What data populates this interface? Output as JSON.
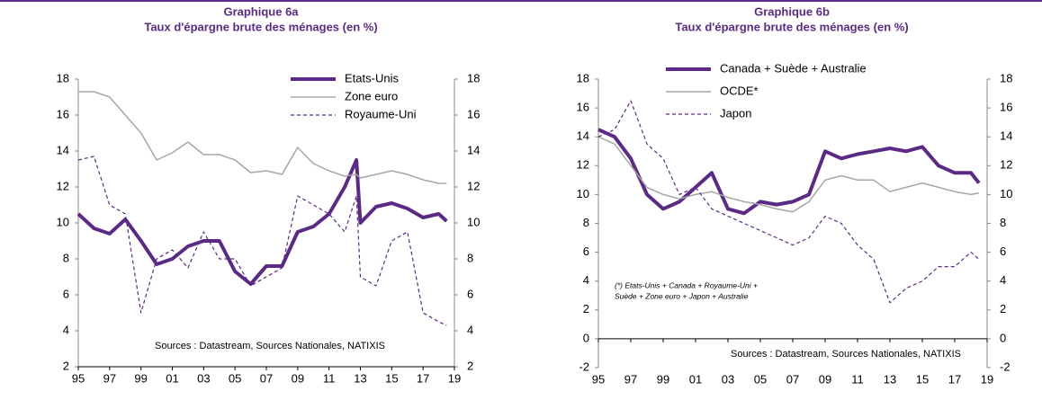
{
  "chart_data": [
    {
      "type": "line",
      "title": [
        "Graphique 6a",
        "Taux d'épargne brute des ménages (en %)"
      ],
      "x": [
        1995,
        1996,
        1997,
        1998,
        1999,
        2000,
        2001,
        2002,
        2003,
        2004,
        2005,
        2006,
        2007,
        2008,
        2009,
        2010,
        2011,
        2012,
        2012.75,
        2013,
        2014,
        2015,
        2016,
        2017,
        2018,
        2018.5
      ],
      "xlim": [
        1995,
        2019
      ],
      "xticks": [
        {
          "value": 1995,
          "label": "95"
        },
        {
          "value": 1997,
          "label": "97"
        },
        {
          "value": 1999,
          "label": "99"
        },
        {
          "value": 2001,
          "label": "01"
        },
        {
          "value": 2003,
          "label": "03"
        },
        {
          "value": 2005,
          "label": "05"
        },
        {
          "value": 2007,
          "label": "07"
        },
        {
          "value": 2009,
          "label": "09"
        },
        {
          "value": 2011,
          "label": "11"
        },
        {
          "value": 2013,
          "label": "13"
        },
        {
          "value": 2015,
          "label": "15"
        },
        {
          "value": 2017,
          "label": "17"
        },
        {
          "value": 2019,
          "label": "19"
        }
      ],
      "ylim": [
        2,
        18
      ],
      "yticks": [
        2,
        4,
        6,
        8,
        10,
        12,
        14,
        16,
        18
      ],
      "y2lim": [
        2,
        18
      ],
      "y2ticks": [
        2,
        4,
        6,
        8,
        10,
        12,
        14,
        16,
        18
      ],
      "legend": "upper right",
      "series": [
        {
          "name": "Etats-Unis",
          "color": "#5b2a86",
          "width": 4,
          "dash": "none",
          "values": [
            10.5,
            9.7,
            9.4,
            10.2,
            9.0,
            7.7,
            8.0,
            8.7,
            9.0,
            9.0,
            7.3,
            6.6,
            7.6,
            7.6,
            9.5,
            9.8,
            10.5,
            12.0,
            13.5,
            10.0,
            10.9,
            11.1,
            10.8,
            10.3,
            10.5,
            10.1
          ]
        },
        {
          "name": "Zone euro",
          "color": "#a6a6a6",
          "width": 1.5,
          "dash": "none",
          "values": [
            17.3,
            17.3,
            17.0,
            16.0,
            15.0,
            13.5,
            13.9,
            14.5,
            13.8,
            13.8,
            13.5,
            12.8,
            12.9,
            12.7,
            14.2,
            13.3,
            12.9,
            12.6,
            12.7,
            12.5,
            12.7,
            12.9,
            12.7,
            12.4,
            12.2,
            12.2
          ]
        },
        {
          "name": "Royaume-Uni",
          "color": "#5b2a86",
          "width": 1.2,
          "dash": "4 3",
          "values": [
            13.5,
            13.7,
            11.0,
            10.5,
            5.0,
            8.0,
            8.5,
            7.5,
            9.5,
            8.0,
            8.0,
            6.5,
            7.0,
            7.5,
            11.5,
            11.0,
            10.5,
            9.5,
            11.5,
            7.0,
            6.5,
            9.0,
            9.5,
            5.0,
            4.5,
            4.3
          ]
        }
      ],
      "annotations": [
        "Sources : Datastream, Sources Nationales,  NATIXIS"
      ]
    },
    {
      "type": "line",
      "title": [
        "Graphique 6b",
        "Taux d'épargne brute des ménages (en %)"
      ],
      "x": [
        1995,
        1996,
        1997,
        1998,
        1999,
        2000,
        2001,
        2002,
        2003,
        2004,
        2005,
        2006,
        2007,
        2008,
        2009,
        2010,
        2011,
        2012,
        2013,
        2014,
        2015,
        2016,
        2017,
        2018,
        2018.5
      ],
      "xlim": [
        1995,
        2019
      ],
      "xticks": [
        {
          "value": 1995,
          "label": "95"
        },
        {
          "value": 1997,
          "label": "97"
        },
        {
          "value": 1999,
          "label": "99"
        },
        {
          "value": 2001,
          "label": "01"
        },
        {
          "value": 2003,
          "label": "03"
        },
        {
          "value": 2005,
          "label": "05"
        },
        {
          "value": 2007,
          "label": "07"
        },
        {
          "value": 2009,
          "label": "09"
        },
        {
          "value": 2011,
          "label": "11"
        },
        {
          "value": 2013,
          "label": "13"
        },
        {
          "value": 2015,
          "label": "15"
        },
        {
          "value": 2017,
          "label": "17"
        },
        {
          "value": 2019,
          "label": "19"
        }
      ],
      "ylim": [
        -2,
        18
      ],
      "yticks": [
        -2,
        0,
        2,
        4,
        6,
        8,
        10,
        12,
        14,
        16,
        18
      ],
      "y2lim": [
        -2,
        18
      ],
      "y2ticks": [
        -2,
        0,
        2,
        4,
        6,
        8,
        10,
        12,
        14,
        16,
        18
      ],
      "legend": "upper left",
      "series": [
        {
          "name": "Canada + Suède + Australie",
          "color": "#5b2a86",
          "width": 4,
          "dash": "none",
          "values": [
            14.5,
            14.0,
            12.5,
            10.0,
            9.0,
            9.5,
            10.5,
            11.5,
            9.0,
            8.7,
            9.5,
            9.3,
            9.5,
            10.0,
            13.0,
            12.5,
            12.8,
            13.0,
            13.2,
            13.0,
            13.3,
            12.0,
            11.5,
            11.5,
            10.8
          ]
        },
        {
          "name": "OCDE*",
          "color": "#a6a6a6",
          "width": 1.5,
          "dash": "none",
          "values": [
            14.0,
            13.5,
            12.0,
            10.5,
            10.0,
            9.7,
            10.0,
            10.2,
            9.8,
            9.5,
            9.3,
            9.0,
            8.8,
            9.5,
            11.0,
            11.3,
            11.0,
            11.0,
            10.2,
            10.5,
            10.8,
            10.5,
            10.2,
            10.0,
            10.1
          ]
        },
        {
          "name": "Japon",
          "color": "#5b2a86",
          "width": 1.2,
          "dash": "4 3",
          "values": [
            14.0,
            14.5,
            16.5,
            13.5,
            12.5,
            10.0,
            10.5,
            9.0,
            8.5,
            8.0,
            7.5,
            7.0,
            6.5,
            7.0,
            8.5,
            8.0,
            6.5,
            5.5,
            2.5,
            3.5,
            4.0,
            5.0,
            5.0,
            6.0,
            5.5
          ]
        }
      ],
      "annotations": [
        "Sources : Datastream, Sources Nationales,  NATIXIS"
      ],
      "footnote": [
        "(*) Etats-Unis + Canada + Royaume-Uni +",
        "Suède + Zone euro + Japon + Australie"
      ]
    }
  ]
}
